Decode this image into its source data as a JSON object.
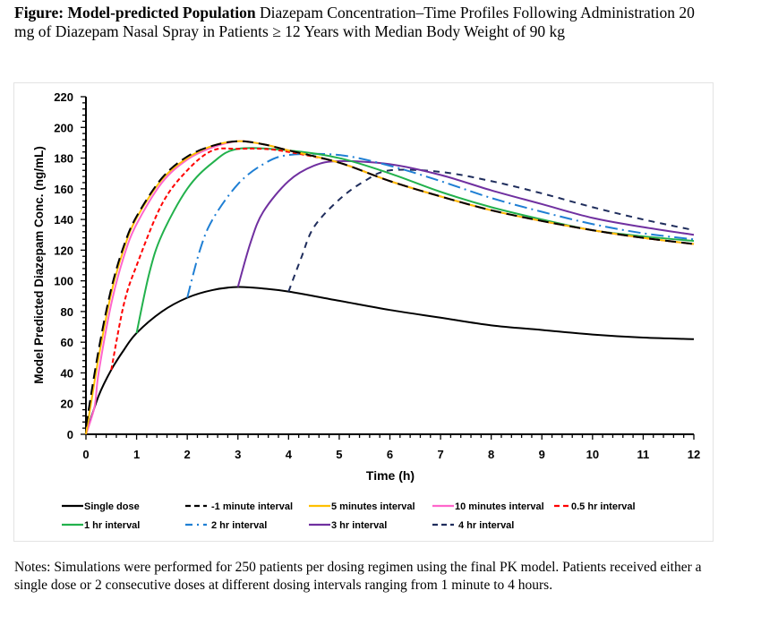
{
  "caption": {
    "bold": "Figure: Model-predicted Population",
    "rest": " Diazepam Concentration–Time Profiles Following Administration 20 mg of Diazepam Nasal Spray in Patients ≥ 12 Years with Median Body Weight of 90 kg"
  },
  "notes": "Notes: Simulations were performed for 250 patients per dosing regimen using the final PK model. Patients received either a single dose or 2 consecutive doses at different dosing intervals ranging from 1 minute to 4 hours.",
  "chart_data": {
    "type": "line",
    "xlabel": "Time (h)",
    "ylabel": "Model Predicted Diazepam Conc. (ng/mL)",
    "xlim": [
      0,
      12
    ],
    "ylim": [
      0,
      220
    ],
    "xticks": [
      "0",
      "1",
      "2",
      "3",
      "4",
      "5",
      "6",
      "7",
      "8",
      "9",
      "10",
      "11",
      "12"
    ],
    "yticks": [
      "0",
      "20",
      "40",
      "60",
      "80",
      "100",
      "120",
      "140",
      "160",
      "180",
      "200",
      "220"
    ],
    "grid": false,
    "legend_placement": "bottom",
    "series": [
      {
        "name": "Single dose",
        "color": "#000000",
        "dash": "",
        "x": [
          0,
          0.25,
          0.5,
          0.75,
          1,
          1.5,
          2,
          2.5,
          3,
          3.5,
          4,
          5,
          6,
          7,
          8,
          9,
          10,
          11,
          12
        ],
        "y": [
          0,
          25,
          42,
          55,
          66,
          80,
          89,
          94,
          96,
          95,
          93,
          87,
          81,
          76,
          71,
          68,
          65,
          63,
          62
        ]
      },
      {
        "name": "-1 minute interval",
        "color": "#000000",
        "dash": "12 6",
        "x": [
          0,
          0.25,
          0.5,
          0.75,
          1,
          1.5,
          2,
          2.5,
          3,
          3.5,
          4,
          5,
          6,
          7,
          8,
          9,
          10,
          11,
          12
        ],
        "y": [
          5,
          55,
          95,
          123,
          142,
          167,
          181,
          188,
          191,
          189,
          185,
          177,
          165,
          155,
          146,
          139,
          133,
          128,
          124
        ]
      },
      {
        "name": "5 minutes interval",
        "color": "#ffc000",
        "dash": "",
        "x": [
          0,
          0.1,
          0.25,
          0.5,
          0.75,
          1,
          1.5,
          2,
          2.5,
          3,
          3.5,
          4,
          5,
          6,
          7,
          8,
          9,
          10,
          11,
          12
        ],
        "y": [
          0,
          20,
          50,
          92,
          121,
          141,
          166,
          180,
          188,
          191,
          189,
          185,
          177,
          165,
          155,
          146,
          139,
          133,
          128,
          124
        ]
      },
      {
        "name": "10 minutes interval",
        "color": "#ff66cc",
        "dash": "",
        "x": [
          0,
          0.17,
          0.25,
          0.5,
          0.75,
          1,
          1.5,
          2,
          2.5,
          3,
          3.5,
          4,
          5,
          6,
          7,
          8,
          9,
          10,
          11,
          12
        ],
        "y": [
          0,
          18,
          40,
          85,
          116,
          137,
          164,
          179,
          187,
          191,
          189,
          185,
          177,
          165,
          155,
          146,
          139,
          133,
          128,
          124
        ]
      },
      {
        "name": "0.5 hr interval",
        "color": "#ff0000",
        "dash": "5 3",
        "x": [
          0.5,
          0.75,
          1,
          1.5,
          2,
          2.5,
          3,
          3.5,
          4,
          5,
          6,
          7,
          8,
          9,
          10,
          11,
          12
        ],
        "y": [
          42,
          85,
          110,
          150,
          172,
          185,
          186,
          186,
          184,
          177,
          165,
          155,
          146,
          139,
          133,
          128,
          124
        ]
      },
      {
        "name": "1 hr interval",
        "color": "#22b14c",
        "dash": "",
        "x": [
          1,
          1.25,
          1.5,
          2,
          2.5,
          3,
          4,
          5,
          6,
          7,
          8,
          9,
          10,
          11,
          12
        ],
        "y": [
          66,
          105,
          130,
          160,
          177,
          186,
          185,
          180,
          170,
          158,
          148,
          140,
          133,
          129,
          126
        ]
      },
      {
        "name": "2 hr interval",
        "color": "#1f7fd4",
        "dash": "14 5 2 5",
        "x": [
          2,
          2.25,
          2.5,
          3,
          3.5,
          4,
          5,
          6,
          7,
          8,
          9,
          10,
          11,
          12
        ],
        "y": [
          89,
          120,
          140,
          163,
          176,
          182,
          182,
          175,
          165,
          154,
          145,
          137,
          131,
          127
        ]
      },
      {
        "name": "3 hr interval",
        "color": "#7030a0",
        "dash": "",
        "x": [
          3,
          3.25,
          3.5,
          4,
          4.5,
          5,
          6,
          7,
          8,
          9,
          10,
          11,
          12
        ],
        "y": [
          96,
          125,
          145,
          165,
          175,
          178,
          176,
          169,
          159,
          150,
          141,
          135,
          130
        ]
      },
      {
        "name": "4 hr interval",
        "color": "#1f2d5c",
        "dash": "7 6",
        "x": [
          4,
          4.25,
          4.5,
          5,
          5.5,
          6,
          7,
          8,
          9,
          10,
          11,
          12
        ],
        "y": [
          93,
          115,
          135,
          153,
          165,
          172,
          171,
          165,
          157,
          148,
          140,
          133
        ]
      }
    ]
  }
}
